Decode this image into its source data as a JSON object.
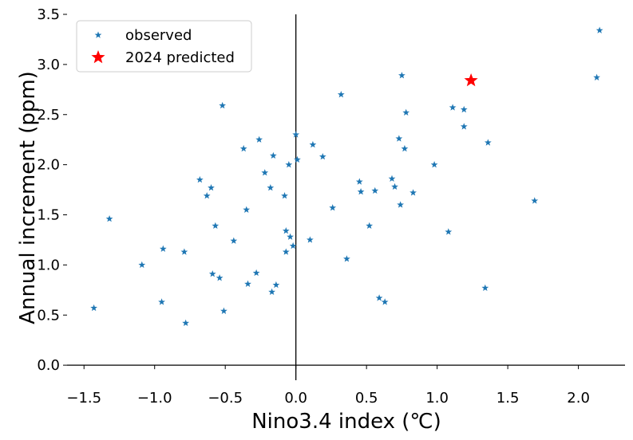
{
  "chart_data": {
    "type": "scatter",
    "title": "",
    "xlabel": "Nino3.4 index (℃)",
    "ylabel": "Annual increment (ppm)",
    "xlim": [
      -1.62,
      2.33
    ],
    "ylim": [
      -0.15,
      3.5
    ],
    "xticks": [
      "−1.5",
      "−1.0",
      "−0.5",
      "0.0",
      "0.5",
      "1.0",
      "1.5",
      "2.0"
    ],
    "xtick_values": [
      -1.5,
      -1.0,
      -0.5,
      0.0,
      0.5,
      1.0,
      1.5,
      2.0
    ],
    "yticks": [
      "0.0",
      "0.5",
      "1.0",
      "1.5",
      "2.0",
      "2.5",
      "3.0",
      "3.5"
    ],
    "ytick_values": [
      0.0,
      0.5,
      1.0,
      1.5,
      2.0,
      2.5,
      3.0,
      3.5
    ],
    "grid": false,
    "legend_position": "top-left",
    "reference_lines": {
      "x": 0,
      "y": 0
    },
    "series": [
      {
        "name": "observed",
        "marker": "small-star",
        "color": "#1f77b4",
        "points": [
          [
            -1.43,
            0.57
          ],
          [
            -1.32,
            1.46
          ],
          [
            -1.09,
            1.0
          ],
          [
            -0.95,
            0.63
          ],
          [
            -0.94,
            1.16
          ],
          [
            -0.79,
            1.13
          ],
          [
            -0.78,
            0.42
          ],
          [
            -0.68,
            1.85
          ],
          [
            -0.63,
            1.69
          ],
          [
            -0.6,
            1.77
          ],
          [
            -0.59,
            0.91
          ],
          [
            -0.57,
            1.39
          ],
          [
            -0.54,
            0.87
          ],
          [
            -0.52,
            2.59
          ],
          [
            -0.51,
            0.54
          ],
          [
            -0.44,
            1.24
          ],
          [
            -0.37,
            2.16
          ],
          [
            -0.35,
            1.55
          ],
          [
            -0.34,
            0.81
          ],
          [
            -0.28,
            0.92
          ],
          [
            -0.26,
            2.25
          ],
          [
            -0.22,
            1.92
          ],
          [
            -0.18,
            1.77
          ],
          [
            -0.17,
            0.73
          ],
          [
            -0.16,
            2.09
          ],
          [
            -0.14,
            0.8
          ],
          [
            -0.08,
            1.69
          ],
          [
            -0.07,
            1.34
          ],
          [
            -0.07,
            1.13
          ],
          [
            -0.05,
            2.0
          ],
          [
            -0.04,
            1.28
          ],
          [
            -0.02,
            1.19
          ],
          [
            0.0,
            2.3
          ],
          [
            0.01,
            2.05
          ],
          [
            0.1,
            1.25
          ],
          [
            0.12,
            2.2
          ],
          [
            0.19,
            2.08
          ],
          [
            0.26,
            1.57
          ],
          [
            0.32,
            2.7
          ],
          [
            0.36,
            1.06
          ],
          [
            0.45,
            1.83
          ],
          [
            0.46,
            1.73
          ],
          [
            0.52,
            1.39
          ],
          [
            0.56,
            1.74
          ],
          [
            0.59,
            0.67
          ],
          [
            0.63,
            0.63
          ],
          [
            0.68,
            1.86
          ],
          [
            0.7,
            1.78
          ],
          [
            0.73,
            2.26
          ],
          [
            0.74,
            1.6
          ],
          [
            0.75,
            2.89
          ],
          [
            0.77,
            2.16
          ],
          [
            0.78,
            2.52
          ],
          [
            0.83,
            1.72
          ],
          [
            0.98,
            2.0
          ],
          [
            1.08,
            1.33
          ],
          [
            1.11,
            2.57
          ],
          [
            1.19,
            2.55
          ],
          [
            1.19,
            2.38
          ],
          [
            1.34,
            0.77
          ],
          [
            1.36,
            2.22
          ],
          [
            1.69,
            1.64
          ],
          [
            2.13,
            2.87
          ],
          [
            2.15,
            3.34
          ]
        ]
      },
      {
        "name": "2024 predicted",
        "marker": "large-star",
        "color": "#ff0000",
        "points": [
          [
            1.24,
            2.84
          ]
        ]
      }
    ]
  }
}
